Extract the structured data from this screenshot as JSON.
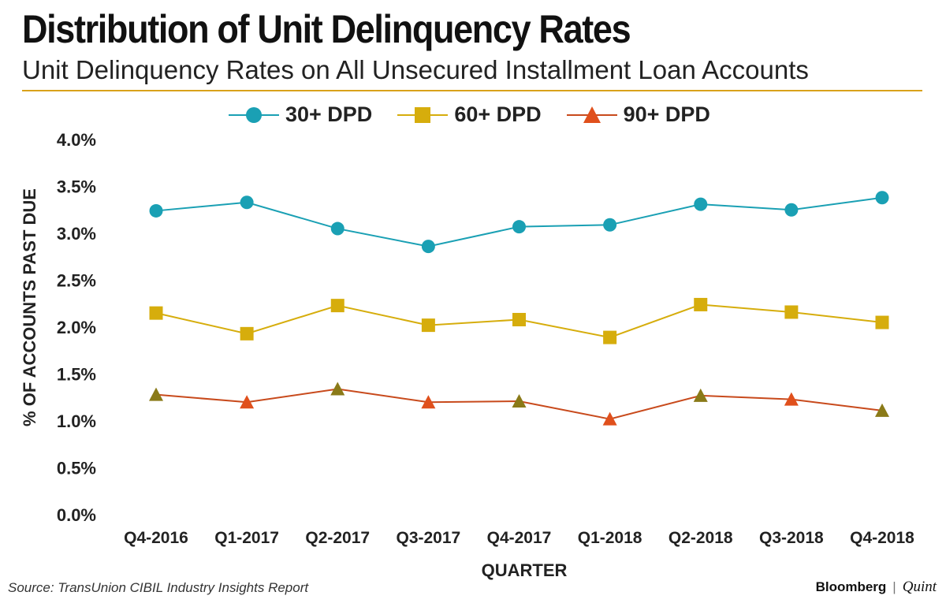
{
  "chart_data": {
    "type": "line",
    "title": "Distribution of Unit Delinquency Rates",
    "subtitle": "Unit Delinquency Rates on All Unsecured Installment Loan Accounts",
    "xlabel": "QUARTER",
    "ylabel": "% OF ACCOUNTS PAST DUE",
    "ylim": [
      0,
      4.0
    ],
    "yticks": [
      0,
      0.5,
      1.0,
      1.5,
      2.0,
      2.5,
      3.0,
      3.5,
      4.0
    ],
    "ytick_labels": [
      "0.0%",
      "0.5%",
      "1.0%",
      "1.5%",
      "2.0%",
      "2.5%",
      "3.0%",
      "3.5%",
      "4.0%"
    ],
    "categories": [
      "Q4-2016",
      "Q1-2017",
      "Q2-2017",
      "Q3-2017",
      "Q4-2017",
      "Q1-2018",
      "Q2-2018",
      "Q3-2018",
      "Q4-2018"
    ],
    "series": [
      {
        "name": "30+ DPD",
        "marker": "circle",
        "color": "#1aa0b4",
        "values": [
          3.24,
          3.33,
          3.05,
          2.86,
          3.07,
          3.09,
          3.31,
          3.25,
          3.38
        ]
      },
      {
        "name": "60+ DPD",
        "marker": "square",
        "color": "#d6ad0c",
        "values": [
          2.15,
          1.93,
          2.23,
          2.02,
          2.08,
          1.89,
          2.24,
          2.16,
          2.05
        ]
      },
      {
        "name": "90+ DPD",
        "marker": "triangle",
        "color": "#c84a1c",
        "values": [
          1.28,
          1.2,
          1.34,
          1.2,
          1.21,
          1.02,
          1.27,
          1.23,
          1.11
        ]
      }
    ],
    "grid": false,
    "legend_position": "top-center"
  },
  "footer": {
    "source": "Source: TransUnion CIBIL Industry Insights Report",
    "brand_primary": "Bloomberg",
    "brand_separator": "|",
    "brand_secondary": "Quint"
  },
  "colors": {
    "accent_rule": "#d9a21b",
    "triangle_fill_a": "#e0501c",
    "triangle_fill_b": "#8a7a18"
  }
}
